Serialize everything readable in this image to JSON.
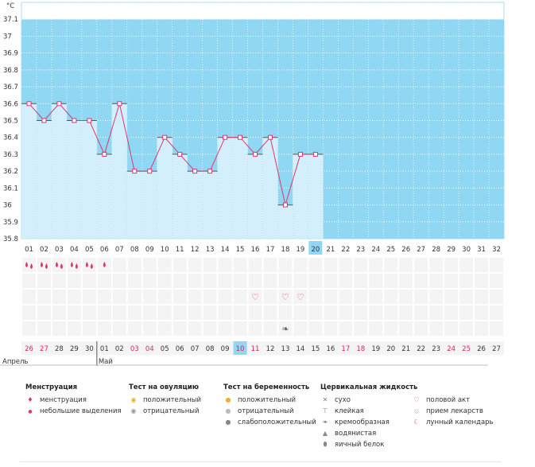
{
  "chart_data": {
    "type": "line",
    "unit_label": "°C",
    "y_ticks": [
      "37.1",
      "37",
      "36.9",
      "36.8",
      "36.7",
      "36.6",
      "36.5",
      "36.4",
      "36.3",
      "36.2",
      "36.1",
      "36",
      "35.9",
      "35.8"
    ],
    "ylim": [
      35.8,
      37.2
    ],
    "cycle_days": [
      "01",
      "02",
      "03",
      "04",
      "05",
      "06",
      "07",
      "08",
      "09",
      "10",
      "11",
      "12",
      "13",
      "14",
      "15",
      "16",
      "17",
      "18",
      "19",
      "20",
      "21",
      "22",
      "23",
      "24",
      "25",
      "26",
      "27",
      "28",
      "29",
      "30",
      "31",
      "32"
    ],
    "values": [
      36.6,
      36.5,
      36.6,
      36.5,
      36.5,
      36.3,
      36.6,
      36.2,
      36.2,
      36.4,
      36.3,
      36.2,
      36.2,
      36.4,
      36.4,
      36.3,
      36.4,
      36.0,
      36.3,
      36.3
    ],
    "current_day_index": 19,
    "menstruation": [
      "heavy",
      "heavy",
      "heavy",
      "heavy",
      "heavy",
      "light"
    ],
    "intercourse_days": [
      16,
      18,
      19
    ],
    "mucus": [
      {
        "day": 18,
        "type": "cream"
      }
    ],
    "calendar_dates": [
      "26",
      "27",
      "28",
      "29",
      "30",
      "01",
      "02",
      "03",
      "04",
      "05",
      "06",
      "07",
      "08",
      "09",
      "10",
      "11",
      "12",
      "13",
      "14",
      "15",
      "16",
      "17",
      "18",
      "19",
      "20",
      "21",
      "22",
      "23",
      "24",
      "25",
      "26",
      "27"
    ],
    "weekend_indices": [
      0,
      1,
      7,
      8,
      14,
      15,
      21,
      22,
      28,
      29
    ],
    "months": [
      {
        "name": "Апрель",
        "start_index": 0
      },
      {
        "name": "Май",
        "start_index": 5
      }
    ]
  },
  "colors": {
    "plot_bg": "#8fd7f2",
    "bar_fill": "#d4effc",
    "line": "#e0356f",
    "weekend": "#dd1f55",
    "today_bg": "#8fd7f2"
  },
  "legend": {
    "menstruation": {
      "title": "Менструация",
      "items": [
        {
          "icon": "menstruation-icon",
          "label": "менструация"
        },
        {
          "icon": "light-spotting-icon",
          "label": "небольшие выделения"
        }
      ]
    },
    "ovulation_test": {
      "title": "Тест на овуляцию",
      "items": [
        {
          "icon": "positive-ovulation-icon",
          "label": "положительный"
        },
        {
          "icon": "negative-ovulation-icon",
          "label": "отрицательный"
        }
      ]
    },
    "pregnancy_test": {
      "title": "Тест на беременность",
      "items": [
        {
          "icon": "positive-pregnancy-icon",
          "label": "положительный"
        },
        {
          "icon": "negative-pregnancy-icon",
          "label": "отрицательный"
        },
        {
          "icon": "weak-positive-pregnancy-icon",
          "label": "слабоположительный"
        }
      ]
    },
    "cervical_fluid": {
      "title": "Цервикальная жидкость",
      "items": [
        {
          "icon": "dry-icon",
          "label": "сухо"
        },
        {
          "icon": "sticky-icon",
          "label": "клейкая"
        },
        {
          "icon": "creamy-icon",
          "label": "кремообразная"
        },
        {
          "icon": "watery-icon",
          "label": "водянистая"
        },
        {
          "icon": "egg-white-icon",
          "label": "яичный белок"
        }
      ]
    },
    "other": {
      "items": [
        {
          "icon": "heart-icon",
          "label": "половой акт"
        },
        {
          "icon": "pill-icon",
          "label": "прием лекарств"
        },
        {
          "icon": "moon-icon",
          "label": "лунный календарь"
        }
      ]
    }
  }
}
